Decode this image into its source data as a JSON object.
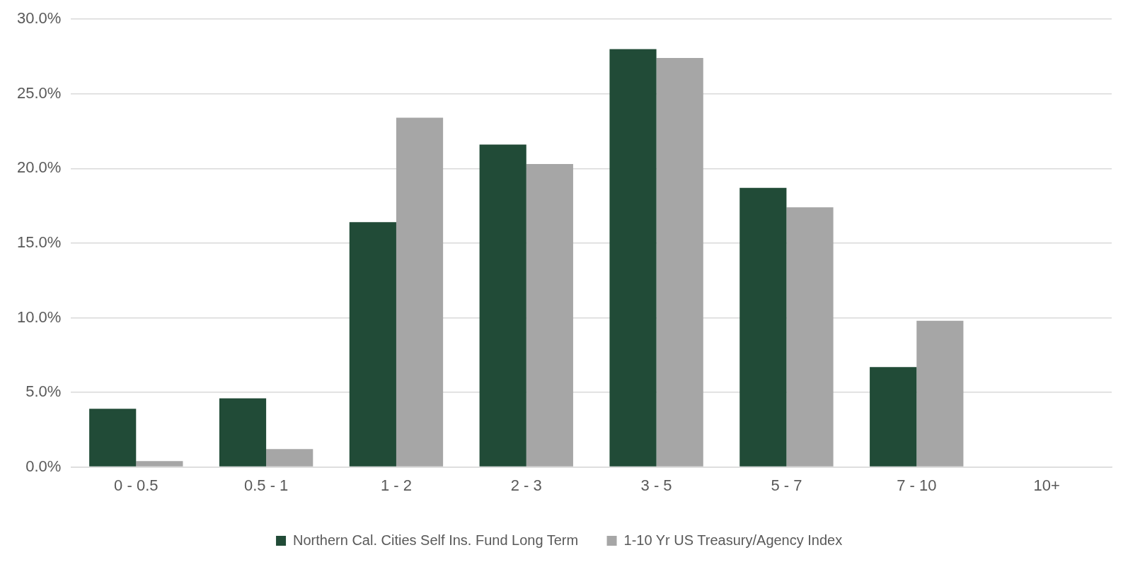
{
  "chart_data": {
    "type": "bar",
    "categories": [
      "0 - 0.5",
      "0.5 - 1",
      "1 - 2",
      "2 - 3",
      "3 - 5",
      "5 - 7",
      "7 - 10",
      "10+"
    ],
    "series": [
      {
        "name": "Northern Cal. Cities Self Ins. Fund Long Term",
        "color": "#214b37",
        "values": [
          3.9,
          4.6,
          16.4,
          21.6,
          28.0,
          18.7,
          6.7,
          0
        ]
      },
      {
        "name": "1-10 Yr US Treasury/Agency Index",
        "color": "#a6a6a6",
        "values": [
          0.4,
          1.2,
          23.4,
          20.3,
          27.4,
          17.4,
          9.8,
          0
        ]
      }
    ],
    "ylim": [
      0,
      30
    ],
    "yticks": [
      {
        "value": 0,
        "label": "0.0%"
      },
      {
        "value": 5,
        "label": "5.0%"
      },
      {
        "value": 10,
        "label": "10.0%"
      },
      {
        "value": 15,
        "label": "15.0%"
      },
      {
        "value": 20,
        "label": "20.0%"
      },
      {
        "value": 25,
        "label": "25.0%"
      },
      {
        "value": 30,
        "label": "30.0%"
      }
    ],
    "grid": "y",
    "legend": "bottom"
  }
}
